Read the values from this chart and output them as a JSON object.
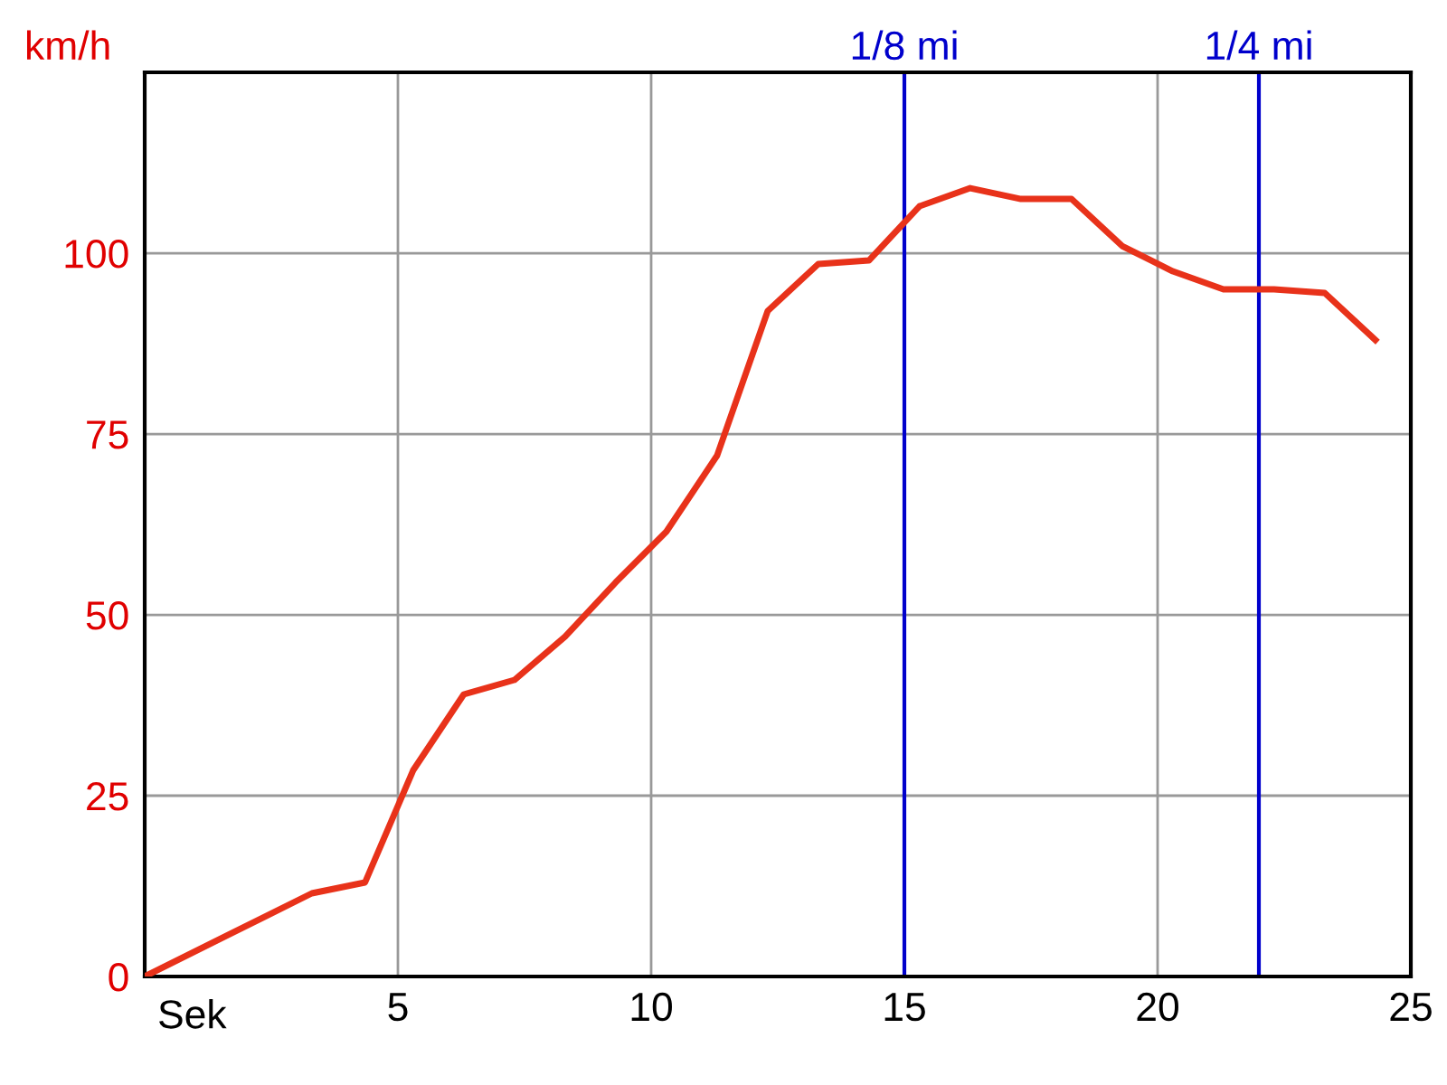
{
  "chart_data": {
    "type": "line",
    "xlabel": "Sek",
    "ylabel": "km/h",
    "x": [
      0,
      3.3,
      4.35,
      5.3,
      6.3,
      7.3,
      8.3,
      9.3,
      10.3,
      11.3,
      12.3,
      13.3,
      14.3,
      15.3,
      16.3,
      17.3,
      18.3,
      19.3,
      20.3,
      21.3,
      22.3,
      23.3,
      24.3
    ],
    "series": [
      {
        "color": "#e8321a",
        "values": [
          0,
          11.5,
          13,
          28.5,
          39,
          41,
          47,
          54.5,
          61.5,
          72,
          92,
          98.5,
          99,
          106.5,
          109,
          107.5,
          107.5,
          101,
          97.5,
          95,
          95,
          94.5,
          88
        ]
      }
    ],
    "xlim": [
      0,
      25
    ],
    "xticks": [
      5,
      10,
      15,
      20,
      25
    ],
    "ylim": [
      0,
      125
    ],
    "yticks": [
      0,
      25,
      50,
      75,
      100
    ],
    "grid": true,
    "marker": "none",
    "line_style": "solid",
    "ref_lines": [
      {
        "axis": "x",
        "value": 15,
        "label": "1/8 mi",
        "color": "#0000cc"
      },
      {
        "axis": "x",
        "value": 22,
        "label": "1/4 mi",
        "color": "#0000cc"
      }
    ]
  }
}
